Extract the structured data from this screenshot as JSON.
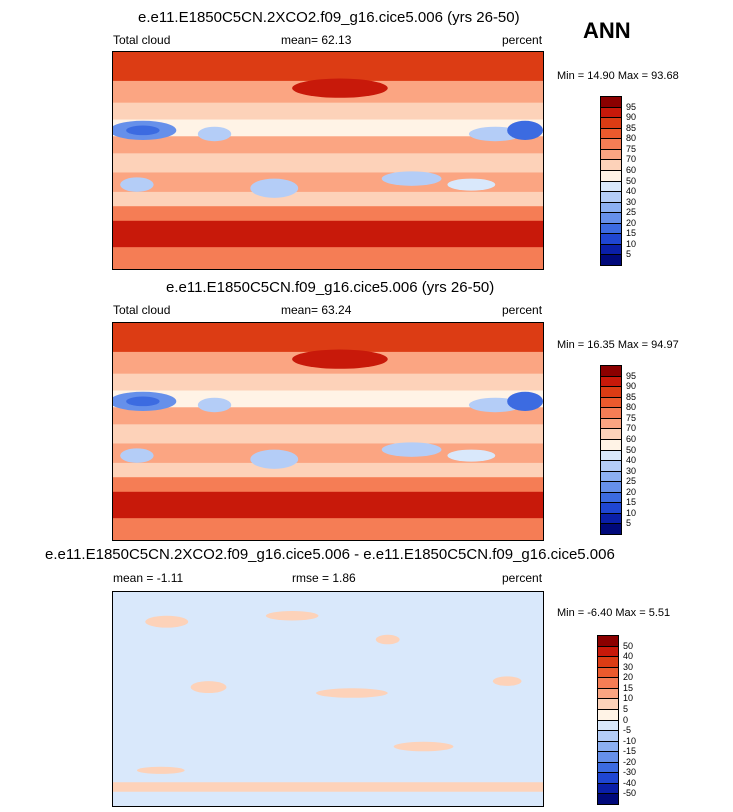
{
  "season": "ANN",
  "panels": [
    {
      "title": "e.e11.E1850C5CN.2XCO2.f09_g16.cice5.006 (yrs 26-50)",
      "left": "Total cloud",
      "center": "mean=  62.13",
      "right": "percent",
      "minmax": "Min = 14.90  Max = 93.68"
    },
    {
      "title": "e.e11.E1850C5CN.f09_g16.cice5.006 (yrs 26-50)",
      "left": "Total cloud",
      "center": "mean=  63.24",
      "right": "percent",
      "minmax": "Min = 16.35  Max = 94.97"
    },
    {
      "title": "e.e11.E1850C5CN.2XCO2.f09_g16.cice5.006 - e.e11.E1850C5CN.f09_g16.cice5.006",
      "left": "mean =  -1.11",
      "center": "rmse =   1.86",
      "right": "percent",
      "minmax": "Min =  -6.40  Max =   5.51"
    }
  ],
  "chart_data": {
    "type": "heatmap",
    "colorbars": [
      {
        "labels": [
          "95",
          "90",
          "85",
          "80",
          "75",
          "70",
          "60",
          "50",
          "40",
          "30",
          "25",
          "20",
          "15",
          "10",
          "5"
        ],
        "colors": [
          "#8b0000",
          "#c8190a",
          "#dc3c14",
          "#eb5a2d",
          "#f57d55",
          "#fba582",
          "#fdd2b9",
          "#fff3e6",
          "#d9e8fb",
          "#b4cdf7",
          "#8cb0f2",
          "#6690ea",
          "#3c6be1",
          "#1f46d2",
          "#0a1fa8",
          "#00097a"
        ]
      },
      {
        "labels": [
          "50",
          "40",
          "30",
          "20",
          "15",
          "10",
          "5",
          "0",
          "-5",
          "-10",
          "-15",
          "-20",
          "-30",
          "-40",
          "-50"
        ],
        "colors": [
          "#8b0000",
          "#c8190a",
          "#dc3c14",
          "#eb5a2d",
          "#f57d55",
          "#fba582",
          "#fdd2b9",
          "#fff3e6",
          "#d9e8fb",
          "#b4cdf7",
          "#8cb0f2",
          "#6690ea",
          "#3c6be1",
          "#1f46d2",
          "#0a1fa8",
          "#00097a"
        ]
      }
    ]
  }
}
